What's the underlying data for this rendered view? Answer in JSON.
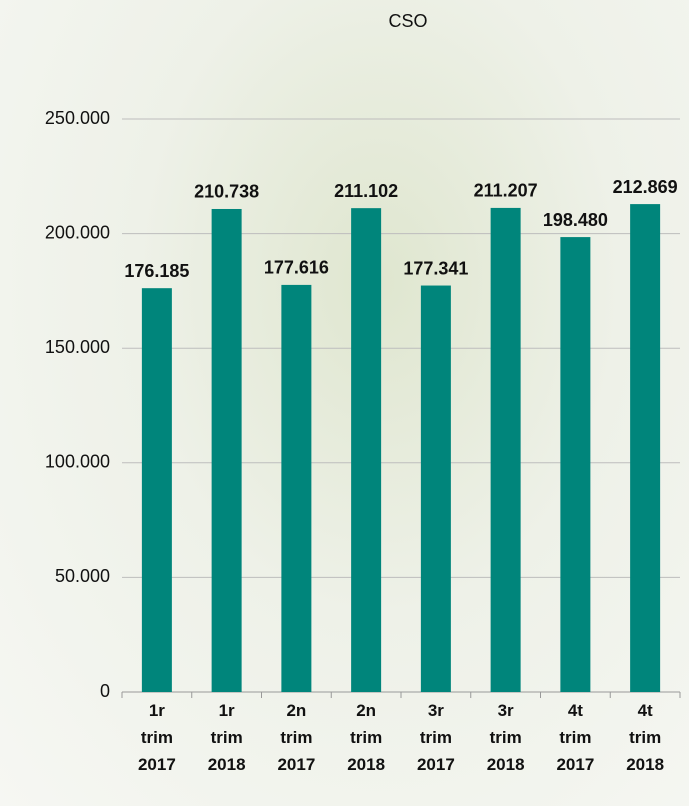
{
  "chart_data": {
    "type": "bar",
    "title": "CSO",
    "categories": [
      "1r trim 2017",
      "1r trim 2018",
      "2n trim 2017",
      "2n trim 2018",
      "3r trim 2017",
      "3r trim 2018",
      "4t trim 2017",
      "4t trim 2018"
    ],
    "values": [
      176185,
      210738,
      177616,
      211102,
      177341,
      211207,
      198480,
      212869
    ],
    "value_labels": [
      "176.185",
      "210.738",
      "177.616",
      "211.102",
      "177.341",
      "211.207",
      "198.480",
      "212.869"
    ],
    "color": "#00857b",
    "ylim": [
      0,
      250000
    ],
    "yticks": [
      0,
      {
        "value": 50000,
        "label": "50.000"
      },
      {
        "value": 100000,
        "label": "100.000"
      },
      {
        "value": 150000,
        "label": "150.000"
      },
      {
        "value": 200000,
        "label": "200.000"
      },
      {
        "value": 250000,
        "label": "250.000"
      }
    ],
    "grid": true
  }
}
